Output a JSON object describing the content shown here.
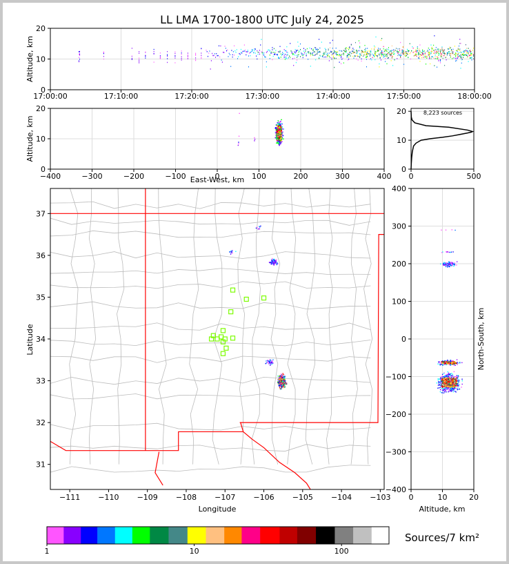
{
  "title": "LL LMA 1700-1800 UTC July 24, 2025",
  "colors": {
    "border": "#ff0000",
    "county": "#bbbbbb",
    "station": "#7cfc00",
    "grid": "#dddddd"
  },
  "chart_data": [
    {
      "type": "scatter",
      "name": "altitude-time",
      "ylabel": "Altitude, km",
      "ylim": [
        0,
        20
      ],
      "yticks": [
        "0",
        "10",
        "20"
      ],
      "xticks": [
        "17:00:00",
        "17:10:00",
        "17:20:00",
        "17:30:00",
        "17:40:00",
        "17:50:00",
        "18:00:00"
      ],
      "x_range_minutes": [
        0,
        60
      ],
      "density": {
        "start_minute": 22,
        "peak_minute": 50,
        "core_altitude": [
          9,
          15
        ]
      }
    },
    {
      "type": "scatter",
      "name": "altitude-eastwest",
      "ylabel": "Altitude, km",
      "xlabel": "East-West, km",
      "xlim": [
        -400,
        400
      ],
      "ylim": [
        0,
        20
      ],
      "xticks": [
        "−400",
        "−300",
        "−200",
        "−100",
        "0",
        "100",
        "200",
        "300",
        "400"
      ],
      "yticks": [
        "0",
        "10",
        "20"
      ],
      "clusters_ew_km": [
        [
          125,
          170
        ],
        [
          45,
          55
        ],
        [
          85,
          92
        ]
      ]
    },
    {
      "type": "line",
      "name": "altitude-histogram",
      "label": "8,223 sources",
      "xlim": [
        0,
        500
      ],
      "ylim": [
        0,
        21
      ],
      "xticks": [
        "0",
        "500"
      ],
      "yticks": [
        "0",
        "10",
        "20"
      ],
      "x": [
        0,
        2,
        5,
        10,
        20,
        40,
        80,
        150,
        250,
        330,
        390,
        450,
        480,
        490,
        450,
        300,
        120,
        30,
        8,
        2,
        0
      ],
      "y": [
        0,
        2,
        4,
        6,
        8,
        9,
        10,
        10.5,
        11,
        11.5,
        12,
        12.5,
        12.8,
        13,
        13.5,
        14.5,
        15,
        16,
        17,
        18,
        20
      ]
    },
    {
      "type": "scatter",
      "name": "plan-view",
      "xlabel": "Longitude",
      "ylabel": "Latitude",
      "xlim": [
        -111.5,
        -102.9
      ],
      "ylim": [
        30.4,
        37.6
      ],
      "xticks": [
        "−111",
        "−110",
        "−109",
        "−108",
        "−107",
        "−106",
        "−105",
        "−104",
        "−103"
      ],
      "yticks": [
        "31",
        "32",
        "33",
        "34",
        "35",
        "36",
        "37"
      ],
      "source_clusters": [
        {
          "lon": -105.75,
          "lat": 35.85,
          "count": 40
        },
        {
          "lon": -105.55,
          "lat": 33.0,
          "count": 150
        },
        {
          "lon": -105.85,
          "lat": 33.45,
          "count": 12
        },
        {
          "lon": -106.85,
          "lat": 36.1,
          "count": 4
        },
        {
          "lon": -106.15,
          "lat": 36.65,
          "count": 2
        }
      ],
      "stations": [
        [
          -106.8,
          35.17
        ],
        [
          -106.45,
          34.95
        ],
        [
          -106.0,
          34.98
        ],
        [
          -106.85,
          34.65
        ],
        [
          -107.3,
          34.08
        ],
        [
          -107.05,
          34.2
        ],
        [
          -107.1,
          34.05
        ],
        [
          -107.35,
          34.0
        ],
        [
          -107.2,
          34.0
        ],
        [
          -107.05,
          33.93
        ],
        [
          -107.0,
          34.0
        ],
        [
          -106.8,
          34.02
        ],
        [
          -106.97,
          33.78
        ],
        [
          -107.05,
          33.65
        ]
      ]
    },
    {
      "type": "scatter",
      "name": "altitude-northsouth",
      "xlabel": "Altitude, km",
      "ylabel": "North-South, km",
      "xlim": [
        0,
        20
      ],
      "ylim": [
        -400,
        400
      ],
      "xticks": [
        "0",
        "10",
        "20"
      ],
      "yticks": [
        "−400",
        "−300",
        "−200",
        "−100",
        "0",
        "100",
        "200",
        "300",
        "400"
      ],
      "clusters_ns_km": [
        [
          -135,
          -95
        ],
        [
          -70,
          -55
        ],
        [
          190,
          210
        ],
        [
          230,
          235
        ],
        [
          290,
          292
        ]
      ]
    },
    {
      "type": "heatmap",
      "name": "colorbar",
      "label": "Sources/7 km²",
      "ticks": [
        "1",
        "10",
        "100"
      ],
      "colors": [
        "#ff55ff",
        "#8800ff",
        "#0000ff",
        "#0077ff",
        "#00ffff",
        "#00ff00",
        "#008844",
        "#448888",
        "#ffff00",
        "#ffc080",
        "#ff8800",
        "#ff0088",
        "#ff0000",
        "#c00000",
        "#800000",
        "#000000",
        "#808080",
        "#c0c0c0",
        "#ffffff"
      ]
    }
  ]
}
